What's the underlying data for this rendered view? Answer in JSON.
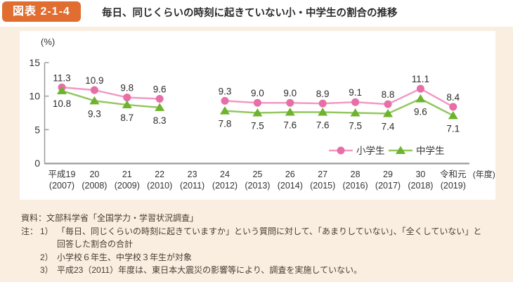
{
  "figure": {
    "badge": "図表 2-1-4",
    "title": "毎日、同じくらいの時刻に起きていない小・中学生の割合の推移"
  },
  "chart_data": {
    "type": "line",
    "unit_label": "(%)",
    "ylim": [
      0,
      15
    ],
    "yticks": [
      0,
      5,
      10,
      15
    ],
    "grid": false,
    "legend_position": "inside-bottom-right",
    "axis_suffix": "(年度)",
    "categories": [
      {
        "era": "平成19",
        "year": "(2007)"
      },
      {
        "era": "20",
        "year": "(2008)"
      },
      {
        "era": "21",
        "year": "(2009)"
      },
      {
        "era": "22",
        "year": "(2010)"
      },
      {
        "era": "23",
        "year": "(2011)"
      },
      {
        "era": "24",
        "year": "(2012)"
      },
      {
        "era": "25",
        "year": "(2013)"
      },
      {
        "era": "26",
        "year": "(2014)"
      },
      {
        "era": "27",
        "year": "(2015)"
      },
      {
        "era": "28",
        "year": "(2016)"
      },
      {
        "era": "29",
        "year": "(2017)"
      },
      {
        "era": "30",
        "year": "(2018)"
      },
      {
        "era": "令和元",
        "year": "(2019)"
      }
    ],
    "series": [
      {
        "name": "小学生",
        "marker": "circle",
        "marker_color": "#e76ea6",
        "line_color": "#f19ac4",
        "values": [
          11.3,
          10.9,
          9.8,
          9.6,
          null,
          9.3,
          9.0,
          9.0,
          8.9,
          9.1,
          8.8,
          11.1,
          8.4
        ]
      },
      {
        "name": "中学生",
        "marker": "triangle",
        "marker_color": "#6db32f",
        "line_color": "#93c75f",
        "values": [
          10.8,
          9.3,
          8.7,
          8.3,
          null,
          7.8,
          7.5,
          7.6,
          7.6,
          7.5,
          7.4,
          9.6,
          7.1
        ]
      }
    ]
  },
  "footer": {
    "source": "資料：文部科学省「全国学力・学習状況調査」",
    "notes": [
      {
        "prefix": "注：",
        "num": "1）",
        "text": "「毎日、同じくらいの時刻に起きていますか」という質問に対して、「あまりしていない」、「全くしていない」と回答した割合の合計"
      },
      {
        "prefix": "",
        "num": "2）",
        "text": "小学校６年生、中学校３年生が対象"
      },
      {
        "prefix": "",
        "num": "3）",
        "text": "平成23（2011）年度は、東日本大震災の影響等により、調査を実施していない。"
      }
    ]
  },
  "colors": {
    "badge_bg": "#e16e30",
    "page_bg": "#f9eee0",
    "panel_bg": "#ffffff",
    "axis": "#9b9b9b",
    "value_label": "#2b2b2b",
    "text": "#333333",
    "note_text": "#473d33"
  }
}
